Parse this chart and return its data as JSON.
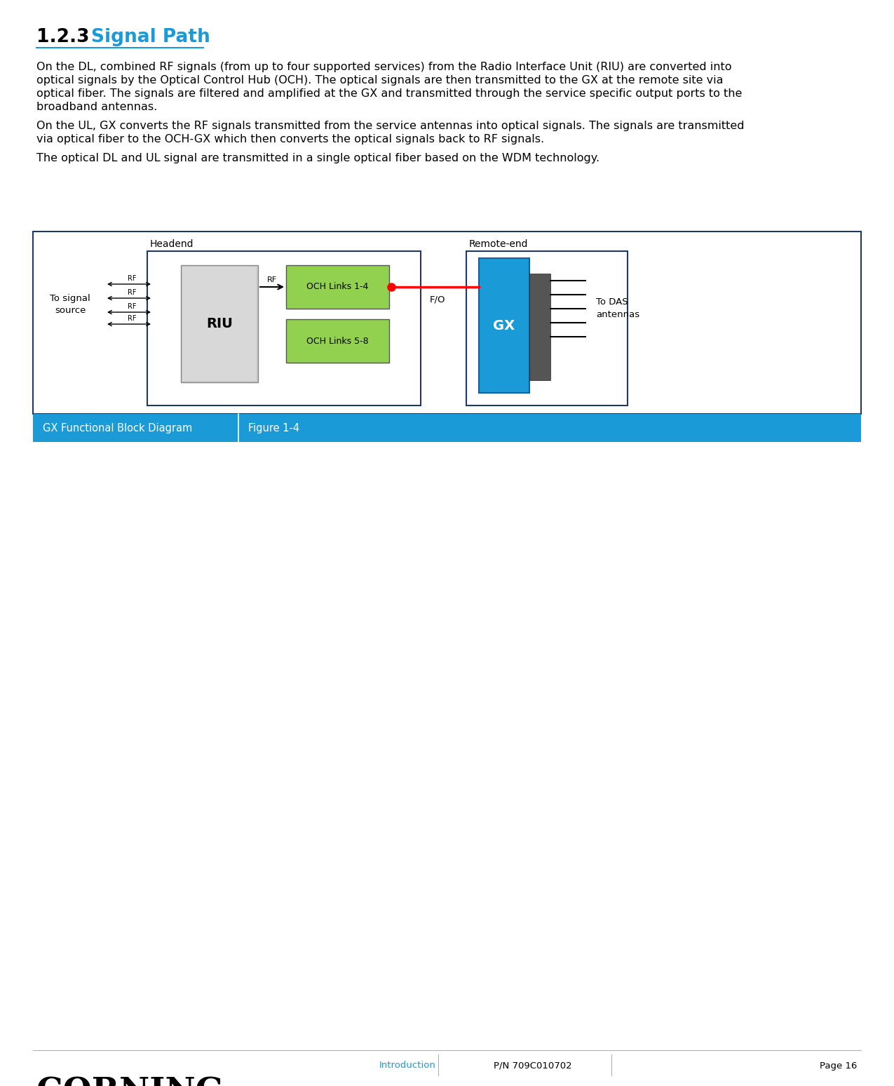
{
  "page_bg": "#ffffff",
  "section_number": "1.2.3",
  "section_title": "Signal Path",
  "section_title_color": "#1a9bd7",
  "section_number_color": "#000000",
  "para1_line1": "On the DL, combined RF signals (from up to four supported services) from the Radio Interface Unit (RIU) are converted into",
  "para1_line2": "optical signals by the Optical Control Hub (OCH). The optical signals are then transmitted to the GX at the remote site via",
  "para1_line3": "optical fiber. The signals are filtered and amplified at the GX and transmitted through the service specific output ports to the",
  "para1_line4": "broadband antennas.",
  "para2_line1": "On the UL, GX converts the RF signals transmitted from the service antennas into optical signals. The signals are transmitted",
  "para2_line2": "via optical fiber to the OCH-GX which then converts the optical signals back to RF signals.",
  "para3": "The optical DL and UL signal are transmitted in a single optical fiber based on the WDM technology.",
  "diagram_border_color": "#1f3864",
  "headend_label": "Headend",
  "remote_label": "Remote-end",
  "riu_label": "RIU",
  "riu_color_light": "#cccccc",
  "riu_color_dark": "#999999",
  "gx_label": "GX",
  "gx_color": "#1a9bd7",
  "och14_label": "OCH Links 1-4",
  "och58_label": "OCH Links 5-8",
  "och_color": "#92d050",
  "fo_label": "F/O",
  "to_signal_label": "To signal\nsource",
  "to_das_label": "To DAS\nantennas",
  "caption_bg": "#1a9bd7",
  "caption_text1": "GX Functional Block Diagram",
  "caption_text2": "Figure 1-4",
  "caption_color": "#ffffff",
  "footer_intro": "Introduction",
  "footer_pn": "P/N 709C010702",
  "footer_page": "Page 16",
  "footer_color": "#1a9bd7",
  "corning_text": "CORNING",
  "text_font_size": 11.5,
  "heading_font_size": 19
}
